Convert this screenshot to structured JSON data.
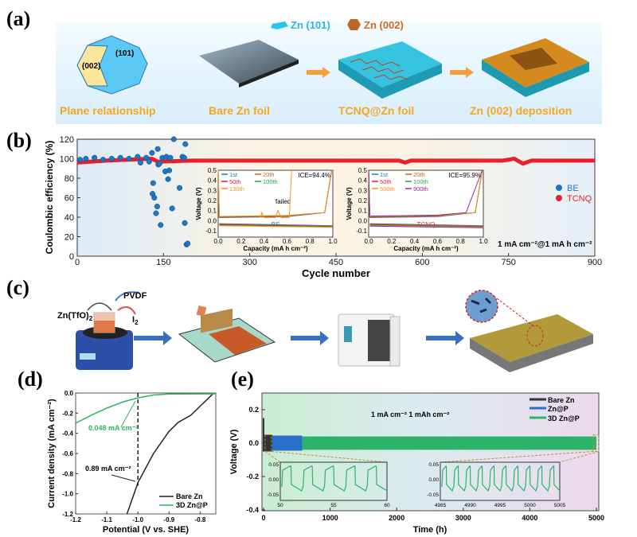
{
  "panels": {
    "a": {
      "label": "(a)",
      "legend": [
        {
          "text": "Zn (101)",
          "color": "#29b6e8"
        },
        {
          "text": "Zn (002)",
          "color": "#d2691e"
        }
      ],
      "crystal_faces": [
        "(101)",
        "(002)"
      ],
      "steps": [
        "Plane  relationship",
        "Bare Zn foil",
        "TCNQ@Zn foil",
        "Zn (002) deposition"
      ],
      "step_color": "#f5a623"
    },
    "b": {
      "label": "(b)"
    },
    "c": {
      "label": "(c)",
      "reagents": {
        "pvdf": "PVDF",
        "salt": "Zn(TfO)",
        "salt_sub": "2",
        "iodine": "I",
        "iodine_sub": "2"
      }
    },
    "d": {
      "label": "(d)"
    },
    "e": {
      "label": "(e)"
    }
  },
  "chart_data": [
    {
      "id": "b",
      "type": "scatter",
      "title": "",
      "xlabel": "Cycle number",
      "ylabel": "Coulombic efficiency (%)",
      "xlim": [
        0,
        900
      ],
      "ylim": [
        0,
        120
      ],
      "xticks": [
        "0",
        "150",
        "300",
        "450",
        "600",
        "750",
        "900"
      ],
      "yticks": [
        "0",
        "20",
        "40",
        "60",
        "80",
        "100",
        "120"
      ],
      "annotation": "1 mA cm⁻²@1 mA h cm⁻²",
      "legend_position": "right",
      "series": [
        {
          "name": "BE",
          "color": "#1f77c4",
          "points": [
            [
              5,
              99
            ],
            [
              15,
              100
            ],
            [
              30,
              101
            ],
            [
              45,
              99
            ],
            [
              60,
              100
            ],
            [
              75,
              101
            ],
            [
              90,
              100
            ],
            [
              105,
              102
            ],
            [
              110,
              96
            ],
            [
              120,
              101
            ],
            [
              125,
              97
            ],
            [
              130,
              106
            ],
            [
              131,
              64
            ],
            [
              132,
              75
            ],
            [
              134,
              60
            ],
            [
              137,
              44
            ],
            [
              139,
              51
            ],
            [
              140,
              110
            ],
            [
              141,
              94
            ],
            [
              143,
              95
            ],
            [
              145,
              32
            ],
            [
              148,
              101
            ],
            [
              153,
              87
            ],
            [
              155,
              102
            ],
            [
              158,
              79
            ],
            [
              160,
              88
            ],
            [
              162,
              101
            ],
            [
              165,
              49
            ],
            [
              168,
              120
            ],
            [
              178,
              70
            ],
            [
              183,
              102
            ],
            [
              186,
              101
            ],
            [
              187,
              34
            ],
            [
              188,
              115
            ],
            [
              190,
              12
            ],
            [
              192,
              13
            ]
          ]
        },
        {
          "name": "TCNQ",
          "color": "#e8202a",
          "line": [
            [
              0,
              96
            ],
            [
              50,
              98
            ],
            [
              130,
              100
            ],
            [
              140,
              97
            ],
            [
              200,
              98
            ],
            [
              450,
              98
            ],
            [
              560,
              98
            ],
            [
              570,
              96
            ],
            [
              580,
              98
            ],
            [
              740,
              98
            ],
            [
              760,
              100
            ],
            [
              775,
              95
            ],
            [
              790,
              98
            ],
            [
              900,
              98
            ]
          ]
        }
      ],
      "insets": [
        {
          "ylabel": "Voltage (V)",
          "xlabel": "Capacity (mA h cm⁻²)",
          "xlim": [
            0,
            1
          ],
          "ylim": [
            -0.1,
            0.5
          ],
          "xticks": [
            "0.0",
            "0.2",
            "0.4",
            "0.6",
            "0.8",
            "1.0"
          ],
          "yticks": [
            "-0.1",
            "0.0",
            "0.1",
            "0.2",
            "0.3",
            "0.4",
            "0.5"
          ],
          "ice": "ICE=94.4%",
          "tag": "BE",
          "tag_color": "#1f77c4",
          "note": "failed",
          "legend": [
            {
              "name": "1st",
              "color": "#1f77c4"
            },
            {
              "name": "20th",
              "color": "#c8622a"
            },
            {
              "name": "50th",
              "color": "#e8202a"
            },
            {
              "name": "100th",
              "color": "#22a84a"
            },
            {
              "name": "130th",
              "color": "#f7941d"
            }
          ]
        },
        {
          "ylabel": "Voltage (V)",
          "xlabel": "Capacity (mA h cm⁻²)",
          "xlim": [
            0,
            1
          ],
          "ylim": [
            -0.1,
            0.5
          ],
          "xticks": [
            "0.0",
            "0.2",
            "0.4",
            "0.6",
            "0.8",
            "1.0"
          ],
          "yticks": [
            "-0.1",
            "0.0",
            "0.1",
            "0.2",
            "0.3",
            "0.4",
            "0.5"
          ],
          "ice": "ICE=95.9%",
          "tag": "TCNQ",
          "tag_color": "#e8202a",
          "legend": [
            {
              "name": "1st",
              "color": "#1f77c4"
            },
            {
              "name": "20th",
              "color": "#c8622a"
            },
            {
              "name": "50th",
              "color": "#e8202a"
            },
            {
              "name": "100th",
              "color": "#22a84a"
            },
            {
              "name": "500th",
              "color": "#f7941d"
            },
            {
              "name": "900th",
              "color": "#8e2c9e"
            }
          ]
        }
      ]
    },
    {
      "id": "d",
      "type": "line",
      "xlabel": "Potential (V vs. SHE)",
      "ylabel": "Current density (mA cm⁻²)",
      "xlim": [
        -1.2,
        -0.75
      ],
      "ylim": [
        -1.2,
        0.0
      ],
      "xticks": [
        "-1.2",
        "-1.1",
        "-1.0",
        "-0.9",
        "-0.8"
      ],
      "xtick_values": [
        -1.2,
        -1.1,
        -1.0,
        -0.9,
        -0.8
      ],
      "yticks": [
        "0.0",
        "-0.2",
        "-0.4",
        "-0.6",
        "-0.8",
        "-1.0",
        "-1.2"
      ],
      "ytick_values": [
        0,
        -0.2,
        -0.4,
        -0.6,
        -0.8,
        -1.0,
        -1.2
      ],
      "legend_position": "bottom-right",
      "annotations": [
        "0.048 mA cm⁻²",
        "0.89 mA cm⁻²"
      ],
      "series": [
        {
          "name": "Bare Zn",
          "color": "#222222",
          "points": [
            [
              -1.035,
              -1.2
            ],
            [
              -1.0,
              -0.89
            ],
            [
              -0.95,
              -0.6
            ],
            [
              -0.9,
              -0.38
            ],
            [
              -0.87,
              -0.29
            ],
            [
              -0.83,
              -0.22
            ],
            [
              -0.8,
              -0.13
            ],
            [
              -0.76,
              -0.01
            ]
          ]
        },
        {
          "name": "3D Zn@P",
          "color": "#2db55d",
          "points": [
            [
              -1.2,
              -0.3
            ],
            [
              -1.15,
              -0.22
            ],
            [
              -1.1,
              -0.15
            ],
            [
              -1.05,
              -0.09
            ],
            [
              -1.0,
              -0.048
            ],
            [
              -0.95,
              -0.02
            ],
            [
              -0.9,
              -0.01
            ],
            [
              -0.75,
              -0.008
            ]
          ]
        }
      ]
    },
    {
      "id": "e",
      "type": "line",
      "xlabel": "Time (h)",
      "ylabel": "Voltage (V)",
      "xlim": [
        0,
        5000
      ],
      "ylim": [
        -0.4,
        0.3
      ],
      "xticks": [
        "0",
        "1000",
        "2000",
        "3000",
        "4000",
        "5000"
      ],
      "xtick_values": [
        0,
        1000,
        2000,
        3000,
        4000,
        5000
      ],
      "yticks": [
        "0.2",
        "0.0",
        "-0.2",
        "-0.4"
      ],
      "ytick_values": [
        0.2,
        0.0,
        -0.2,
        -0.4
      ],
      "annotation": "1 mA cm⁻²   1 mAh cm⁻²",
      "legend_position": "top-right",
      "series": [
        {
          "name": "Bare Zn",
          "color": "#333333",
          "range": [
            0,
            130
          ],
          "amplitude": 0.05
        },
        {
          "name": "Zn@P",
          "color": "#2a6fc9",
          "range": [
            0,
            580
          ],
          "amplitude": 0.045
        },
        {
          "name": "3D Zn@P",
          "color": "#2db36a",
          "range": [
            0,
            5000
          ],
          "amplitude": 0.04
        }
      ],
      "insets": [
        {
          "xlim": [
            50,
            60
          ],
          "xticks": [
            "50",
            "55",
            "60"
          ],
          "yticks": [
            "0.05",
            "0.00",
            "-0.05"
          ],
          "cycles": 5
        },
        {
          "xlim": [
            4985,
            5005
          ],
          "xticks": [
            "4985",
            "4990",
            "4995",
            "5000",
            "5005"
          ],
          "yticks": [
            "0.05",
            "0.00",
            "-0.05"
          ],
          "cycles": 10
        }
      ]
    }
  ]
}
